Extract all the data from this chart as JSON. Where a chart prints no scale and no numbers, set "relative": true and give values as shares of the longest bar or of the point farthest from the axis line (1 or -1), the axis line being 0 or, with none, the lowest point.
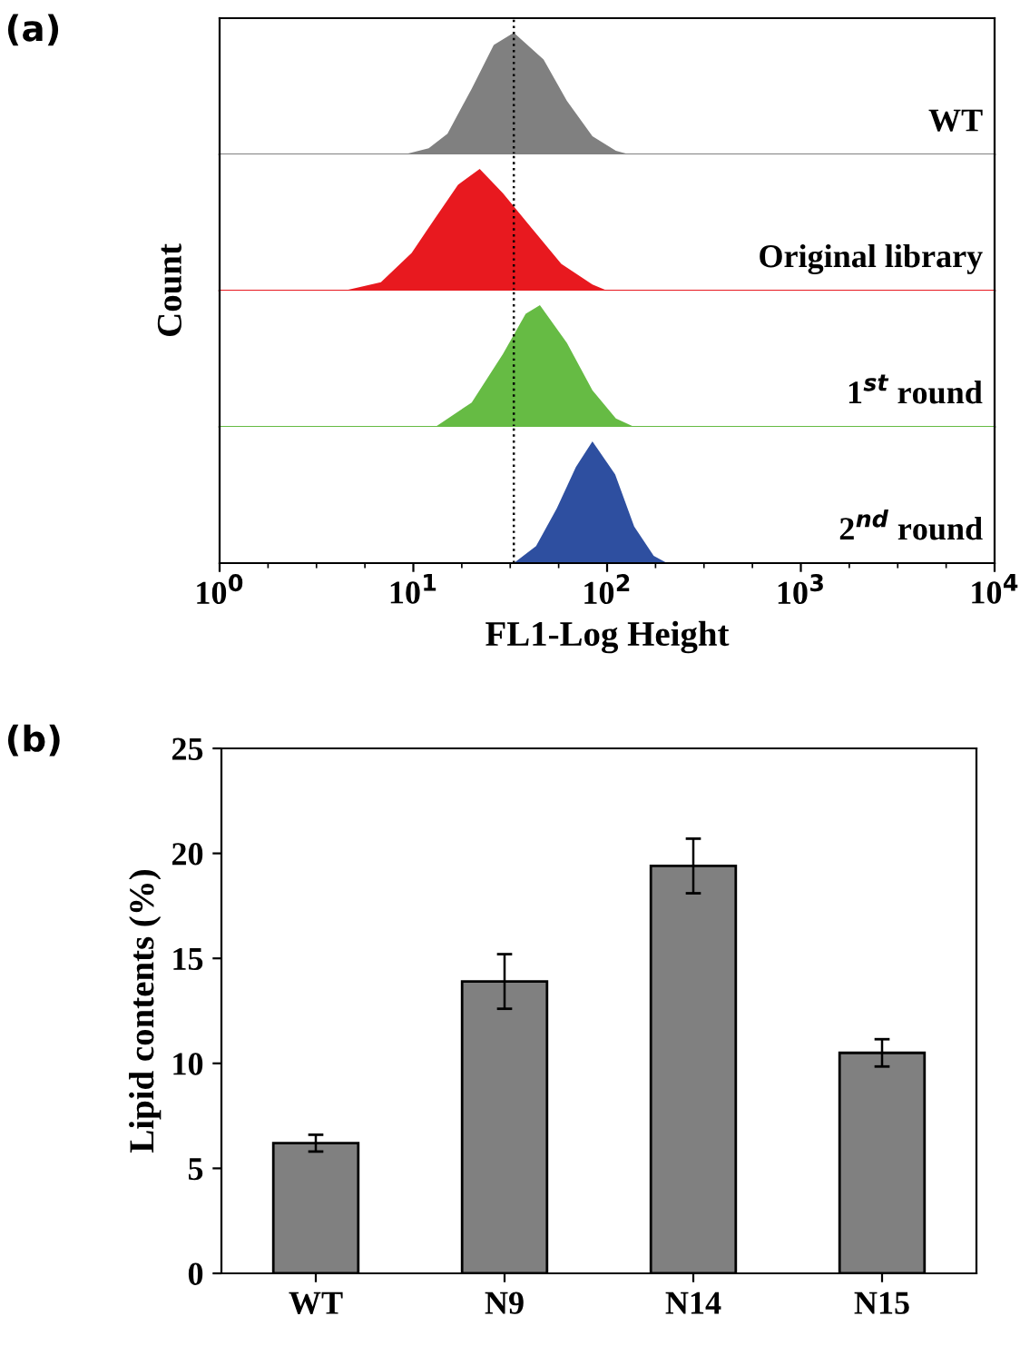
{
  "chart_data": [
    {
      "type": "area",
      "title": "(a)",
      "relative": true,
      "log": "x",
      "tick_labels": false,
      "xlim": [
        1,
        10000
      ],
      "ref_lines": [
        {
          "axis": "x",
          "value": 33,
          "line_style": "dotted",
          "color": "#000000"
        }
      ],
      "series": [
        {
          "name": "WT",
          "color": "#808080",
          "x": [
            9,
            12,
            15,
            20,
            26,
            33,
            47,
            62,
            84,
            111,
            130
          ],
          "values": [
            0,
            0.05,
            0.17,
            0.54,
            0.9,
            1,
            0.78,
            0.44,
            0.15,
            0.03,
            0
          ]
        }
      ]
    },
    {
      "type": "area",
      "ylabel": "Count",
      "relative": true,
      "log": "x",
      "tick_labels": false,
      "xlim": [
        1,
        10000
      ],
      "ref_lines": [
        {
          "axis": "x",
          "value": 33,
          "line_style": "dotted",
          "color": "#000000"
        }
      ],
      "series": [
        {
          "name": "Original library",
          "color": "#e8191f",
          "x": [
            4.4,
            6.8,
            9.8,
            13,
            17,
            22,
            29,
            41,
            58,
            84,
            100
          ],
          "values": [
            0,
            0.07,
            0.31,
            0.6,
            0.87,
            1,
            0.8,
            0.51,
            0.22,
            0.05,
            0
          ]
        }
      ]
    },
    {
      "type": "area",
      "relative": true,
      "log": "x",
      "tick_labels": false,
      "xlim": [
        1,
        10000
      ],
      "ref_lines": [
        {
          "axis": "x",
          "value": 33,
          "line_style": "dotted",
          "color": "#000000"
        }
      ],
      "series": [
        {
          "name": "1$^{st}$ round",
          "color": "#66bb44",
          "x": [
            13,
            20,
            29,
            38,
            45,
            62,
            84,
            111,
            138
          ],
          "values": [
            0,
            0.2,
            0.6,
            0.93,
            1,
            0.69,
            0.3,
            0.07,
            0
          ]
        }
      ]
    },
    {
      "type": "area",
      "xlabel": "FL1-Log Height",
      "relative": true,
      "log": "x",
      "tick_labels": "x",
      "xlim": [
        1,
        10000
      ],
      "xticks": [
        {
          "value": 1,
          "label": "10$^{0}$"
        },
        {
          "value": 10,
          "label": "10$^{1}$"
        },
        {
          "value": 100,
          "label": "10$^{2}$"
        },
        {
          "value": 1000,
          "label": "10$^{3}$"
        },
        {
          "value": 10000,
          "label": "10$^{4}$"
        }
      ],
      "ref_lines": [
        {
          "axis": "x",
          "value": 33,
          "line_style": "dotted",
          "color": "#000000"
        }
      ],
      "series": [
        {
          "name": "2$^{nd}$ round",
          "color": "#2e4fa0",
          "x": [
            33,
            43,
            55,
            69,
            84,
            110,
            138,
            174,
            204
          ],
          "values": [
            0,
            0.14,
            0.45,
            0.79,
            1,
            0.73,
            0.3,
            0.06,
            0
          ]
        }
      ]
    },
    {
      "type": "bar",
      "title": "(b)",
      "ylabel": "Lipid contents (%)",
      "categories": [
        "WT",
        "N9",
        "N14",
        "N15"
      ],
      "values": [
        6.2,
        13.9,
        19.4,
        10.5
      ],
      "errors": [
        0.4,
        1.3,
        1.3,
        0.65
      ],
      "color": "#808080",
      "ylim": [
        0,
        25
      ],
      "yticks": [
        0,
        5,
        10,
        15,
        20,
        25
      ],
      "grid": false
    }
  ]
}
